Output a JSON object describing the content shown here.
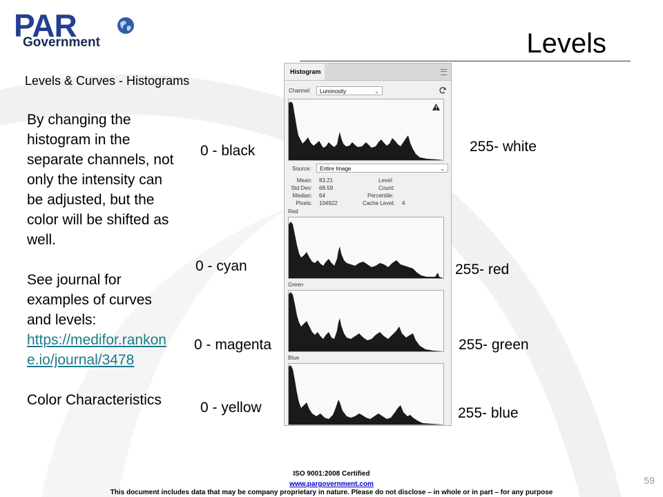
{
  "logo": {
    "brand": "PAR",
    "sub": "Government"
  },
  "slide": {
    "title": "Levels",
    "subtitle": "Levels & Curves - Histograms",
    "body": {
      "para1": "By changing the histogram in the separate channels, not only the intensity can be adjusted, but the color will be shifted as well.",
      "para2": "See journal for examples of curves and levels:",
      "link": "https://medifor.rankone.io/journal/3478",
      "para3": "Color Characteristics"
    },
    "labels": {
      "black": "0 - black",
      "white": "255- white",
      "cyan": "0 - cyan",
      "red": "255- red",
      "magenta": "0 - magenta",
      "green": "255- green",
      "yellow": "0 - yellow",
      "blue": "255- blue"
    },
    "page_number": "59"
  },
  "panel": {
    "tab": "Histogram",
    "channel_label": "Channel:",
    "channel_value": "Luminosity",
    "source_label": "Source:",
    "source_value": "Entire Image",
    "stats": {
      "mean_k": "Mean:",
      "mean_v": "83.21",
      "std_k": "Std Dev:",
      "std_v": "68.59",
      "median_k": "Median:",
      "median_v": "64",
      "pixels_k": "Pixels:",
      "pixels_v": "104922",
      "level_k": "Level:",
      "count_k": "Count:",
      "percentile_k": "Percentile:",
      "cache_k": "Cache Level:",
      "cache_v": "4"
    },
    "channels": {
      "red": "Red",
      "green": "Green",
      "blue": "Blue"
    },
    "warning_icon": "warning-triangle-icon",
    "refresh_icon": "refresh-icon"
  },
  "footer": {
    "cert": "ISO 9001:2008 Certified",
    "url": "www.pargovernment.com",
    "notice": "This document includes data that may be company proprietary in nature. Please do not disclose – in whole or in part – for any purpose"
  },
  "colors": {
    "brand_blue": "#243f8f",
    "link": "#1a7a8a",
    "hist_fill": "#1a1a1a"
  }
}
